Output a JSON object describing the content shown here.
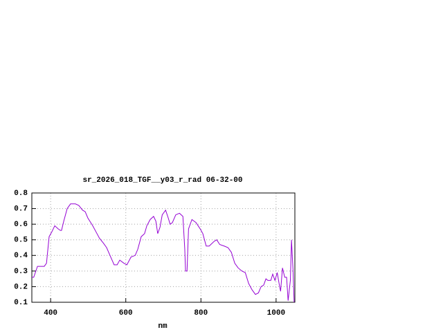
{
  "chart_data": {
    "type": "line",
    "title": "sr_2026_018_TGF__y03_r_rad 06-32-00",
    "xlabel": "nm",
    "x": [
      350,
      355,
      365,
      374,
      383,
      389,
      396,
      403,
      411,
      420,
      426,
      429,
      435,
      444,
      453,
      466,
      475,
      485,
      492,
      499,
      512,
      521,
      530,
      540,
      549,
      558,
      569,
      577,
      584,
      595,
      603,
      614,
      625,
      632,
      641,
      650,
      656,
      665,
      674,
      680,
      685,
      691,
      697,
      706,
      713,
      718,
      724,
      733,
      743,
      752,
      757,
      759,
      763,
      767,
      776,
      787,
      798,
      805,
      814,
      822,
      835,
      842,
      850,
      862,
      872,
      881,
      890,
      899,
      909,
      918,
      927,
      936,
      945,
      953,
      960,
      967,
      973,
      978,
      986,
      991,
      997,
      1003,
      1008,
      1012,
      1017,
      1023,
      1028,
      1032,
      1038,
      1041,
      1045,
      1048
    ],
    "series": [
      {
        "color": "#9400d3",
        "values": [
          0.26,
          0.26,
          0.33,
          0.33,
          0.33,
          0.35,
          0.52,
          0.55,
          0.59,
          0.57,
          0.56,
          0.56,
          0.62,
          0.7,
          0.73,
          0.73,
          0.72,
          0.69,
          0.68,
          0.64,
          0.59,
          0.55,
          0.51,
          0.48,
          0.45,
          0.4,
          0.34,
          0.34,
          0.37,
          0.35,
          0.34,
          0.39,
          0.4,
          0.44,
          0.52,
          0.54,
          0.59,
          0.63,
          0.65,
          0.62,
          0.54,
          0.58,
          0.66,
          0.69,
          0.64,
          0.6,
          0.61,
          0.66,
          0.67,
          0.65,
          0.44,
          0.3,
          0.3,
          0.57,
          0.63,
          0.61,
          0.57,
          0.54,
          0.46,
          0.46,
          0.49,
          0.5,
          0.47,
          0.46,
          0.45,
          0.42,
          0.35,
          0.32,
          0.3,
          0.29,
          0.22,
          0.18,
          0.15,
          0.16,
          0.2,
          0.21,
          0.25,
          0.24,
          0.24,
          0.28,
          0.24,
          0.29,
          0.22,
          0.17,
          0.32,
          0.26,
          0.26,
          0.11,
          0.24,
          0.5,
          0.31,
          0.1
        ]
      }
    ],
    "xlim": [
      350,
      1050
    ],
    "ylim": [
      0.1,
      0.8
    ],
    "xticks": [
      400,
      600,
      800,
      1000
    ],
    "yticks": [
      0.1,
      0.2,
      0.3,
      0.4,
      0.5,
      0.6,
      0.7,
      0.8
    ],
    "grid": true
  }
}
